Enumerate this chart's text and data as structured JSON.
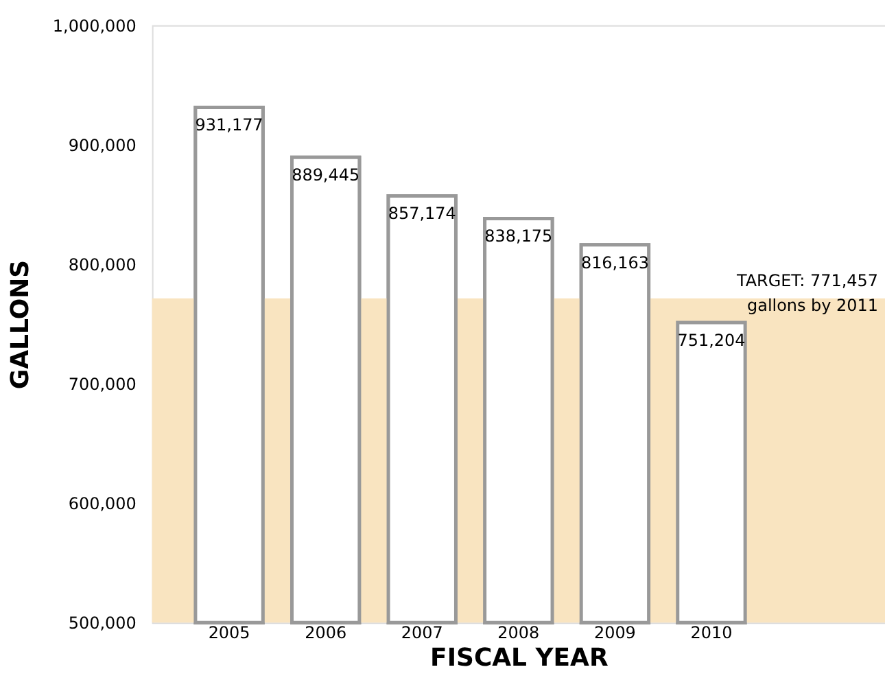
{
  "chart_data": {
    "type": "bar",
    "xlabel": "FISCAL YEAR",
    "ylabel": "GALLONS",
    "categories": [
      "2005",
      "2006",
      "2007",
      "2008",
      "2009",
      "2010",
      null
    ],
    "values": [
      931177,
      889445,
      857174,
      838175,
      816163,
      751204,
      null
    ],
    "value_labels": [
      "931,177",
      "889,445",
      "857,174",
      "838,175",
      "816,163",
      "751,204",
      null
    ],
    "color": "#ffffff",
    "ylim": [
      500000,
      1000000
    ],
    "yticks": [
      {
        "value": 500000,
        "label": "500,000"
      },
      {
        "value": 600000,
        "label": "600,000"
      },
      {
        "value": 700000,
        "label": "700,000"
      },
      {
        "value": 800000,
        "label": "800,000"
      },
      {
        "value": 900000,
        "label": "900,000"
      },
      {
        "value": 1000000,
        "label": "1,000,000"
      }
    ],
    "bands": [
      {
        "axis": "y",
        "from": 500000,
        "to": 771457,
        "color": "#f9e4c0",
        "label": "TARGET: 771,457\ngallons by 2011"
      }
    ]
  }
}
